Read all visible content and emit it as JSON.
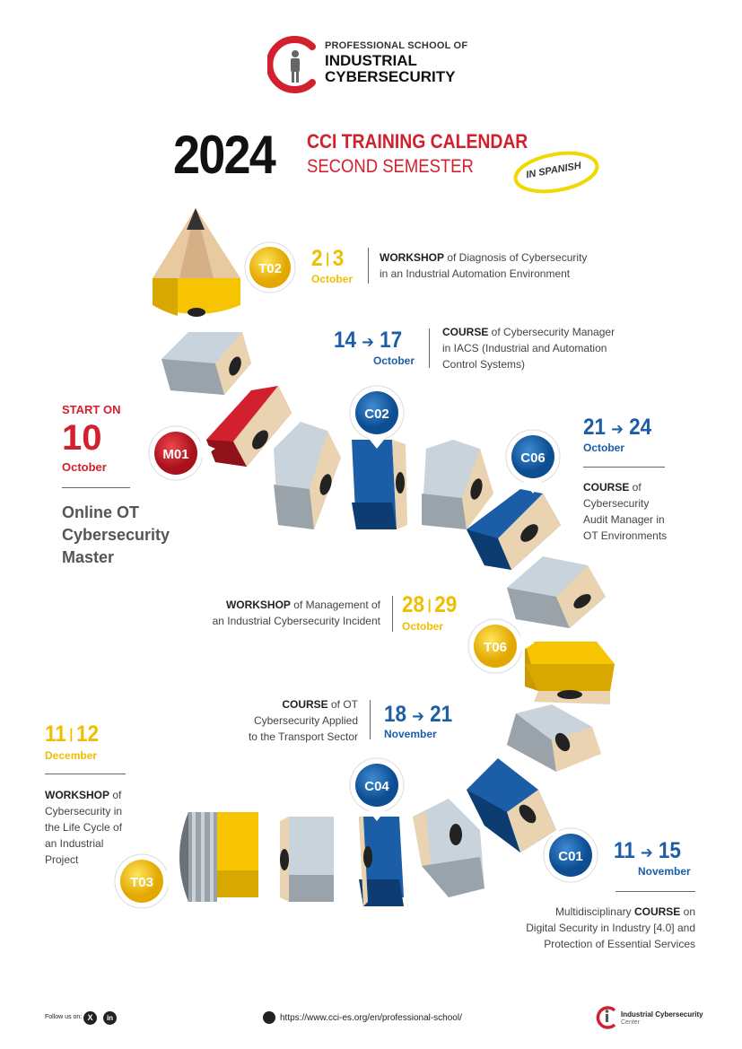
{
  "header": {
    "school_line1": "PROFESSIONAL SCHOOL OF",
    "school_line2": "INDUSTRIAL",
    "school_line3": "CYBERSECURITY",
    "year": "2024",
    "title_line1": "CCI TRAINING CALENDAR",
    "title_line2": "SECOND SEMESTER",
    "language_badge": "IN SPANISH"
  },
  "events": {
    "t02": {
      "code": "T02",
      "day1": "2",
      "day2": "3",
      "month": "October",
      "type": "WORKSHOP",
      "line1": " of Diagnosis of Cybersecurity",
      "line2": "in an Industrial Automation Environment"
    },
    "c02": {
      "code": "C02",
      "day1": "14",
      "day2": "17",
      "month": "October",
      "type": "COURSE",
      "line1": " of Cybersecurity Manager",
      "line2": "in IACS (Industrial and Automation",
      "line3": "Control Systems)"
    },
    "m01": {
      "code": "M01",
      "start": "START ON",
      "day": "10",
      "month": "October",
      "line1": "Online OT",
      "line2": "Cybersecurity",
      "line3": "Master"
    },
    "c06": {
      "code": "C06",
      "day1": "21",
      "day2": "24",
      "month": "October",
      "type": "COURSE",
      "line1": " of",
      "line2": "Cybersecurity",
      "line3": "Audit Manager in",
      "line4": "OT Environments"
    },
    "t06": {
      "code": "T06",
      "day1": "28",
      "day2": "29",
      "month": "October",
      "type": "WORKSHOP",
      "line1": " of Management of",
      "line2": "an Industrial Cybersecurity Incident"
    },
    "c04": {
      "code": "C04",
      "day1": "18",
      "day2": "21",
      "month": "November",
      "type": "COURSE",
      "line1": " of OT",
      "line2": "Cybersecurity Applied",
      "line3": "to the Transport Sector"
    },
    "t03": {
      "code": "T03",
      "day1": "11",
      "day2": "12",
      "month": "December",
      "type": "WORKSHOP",
      "line1": " of",
      "line2": "Cybersecurity in",
      "line3": "the Life Cycle of",
      "line4": "an Industrial",
      "line5": "Project"
    },
    "c01": {
      "code": "C01",
      "day1": "11",
      "day2": "15",
      "month": "November",
      "prefix": "Multidisciplinary ",
      "type": "COURSE",
      "line1": " on",
      "line2": "Digital Security in Industry [4.0] and",
      "line3": "Protection of Essential Services"
    }
  },
  "footer": {
    "follow": "Follow us on:",
    "x_icon": "x-icon",
    "linkedin_icon": "linkedin-icon",
    "url": "https://www.cci-es.org/en/professional-school/",
    "center_line1": "Industrial Cybersecurity",
    "center_line2": "Center"
  },
  "colors": {
    "red": "#d2202f",
    "yellow": "#f0be00",
    "blue": "#1b5ea7",
    "grey": "#a7adb4"
  }
}
